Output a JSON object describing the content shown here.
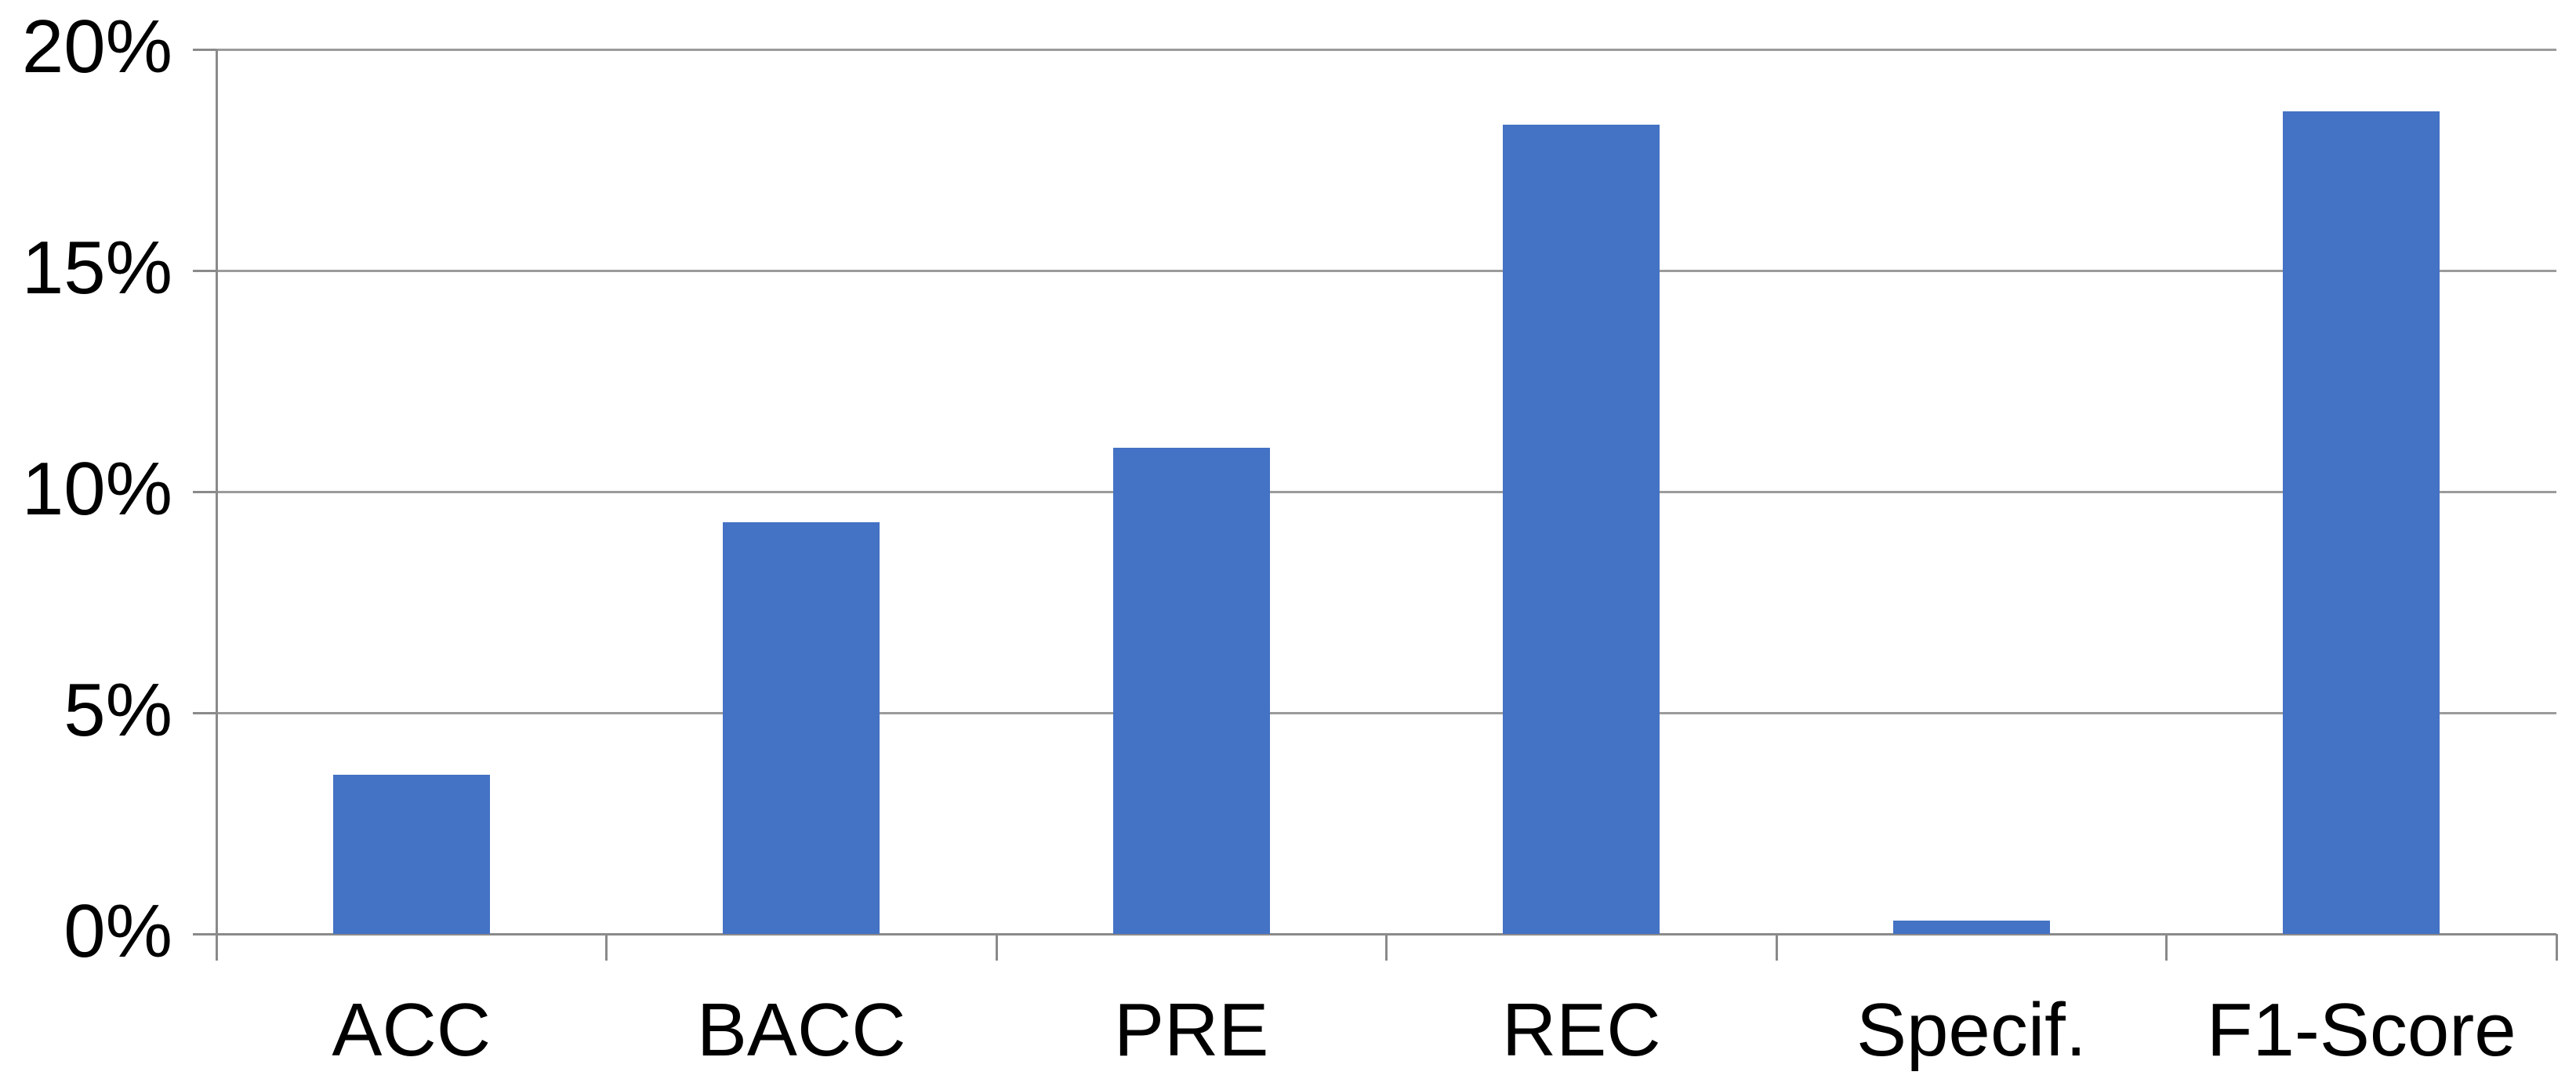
{
  "chart_data": {
    "type": "bar",
    "title": "",
    "xlabel": "",
    "ylabel": "",
    "categories": [
      "ACC",
      "BACC",
      "PRE",
      "REC",
      "Specif.",
      "F1-Score"
    ],
    "values": [
      3.6,
      9.3,
      11.0,
      18.3,
      0.3,
      18.6
    ],
    "unit": "%",
    "ylim": [
      0,
      20
    ],
    "y_ticks": [
      0,
      5,
      10,
      15,
      20
    ],
    "y_tick_labels": [
      "0%",
      "5%",
      "10%",
      "15%",
      "20%"
    ],
    "grid": "horizontal-on",
    "legend": "none",
    "colors": {
      "bar": "#4472C4",
      "gridline": "#9B9B9B",
      "axis": "#8A8A8A",
      "text": "#000000",
      "background": "#FFFFFF"
    }
  }
}
